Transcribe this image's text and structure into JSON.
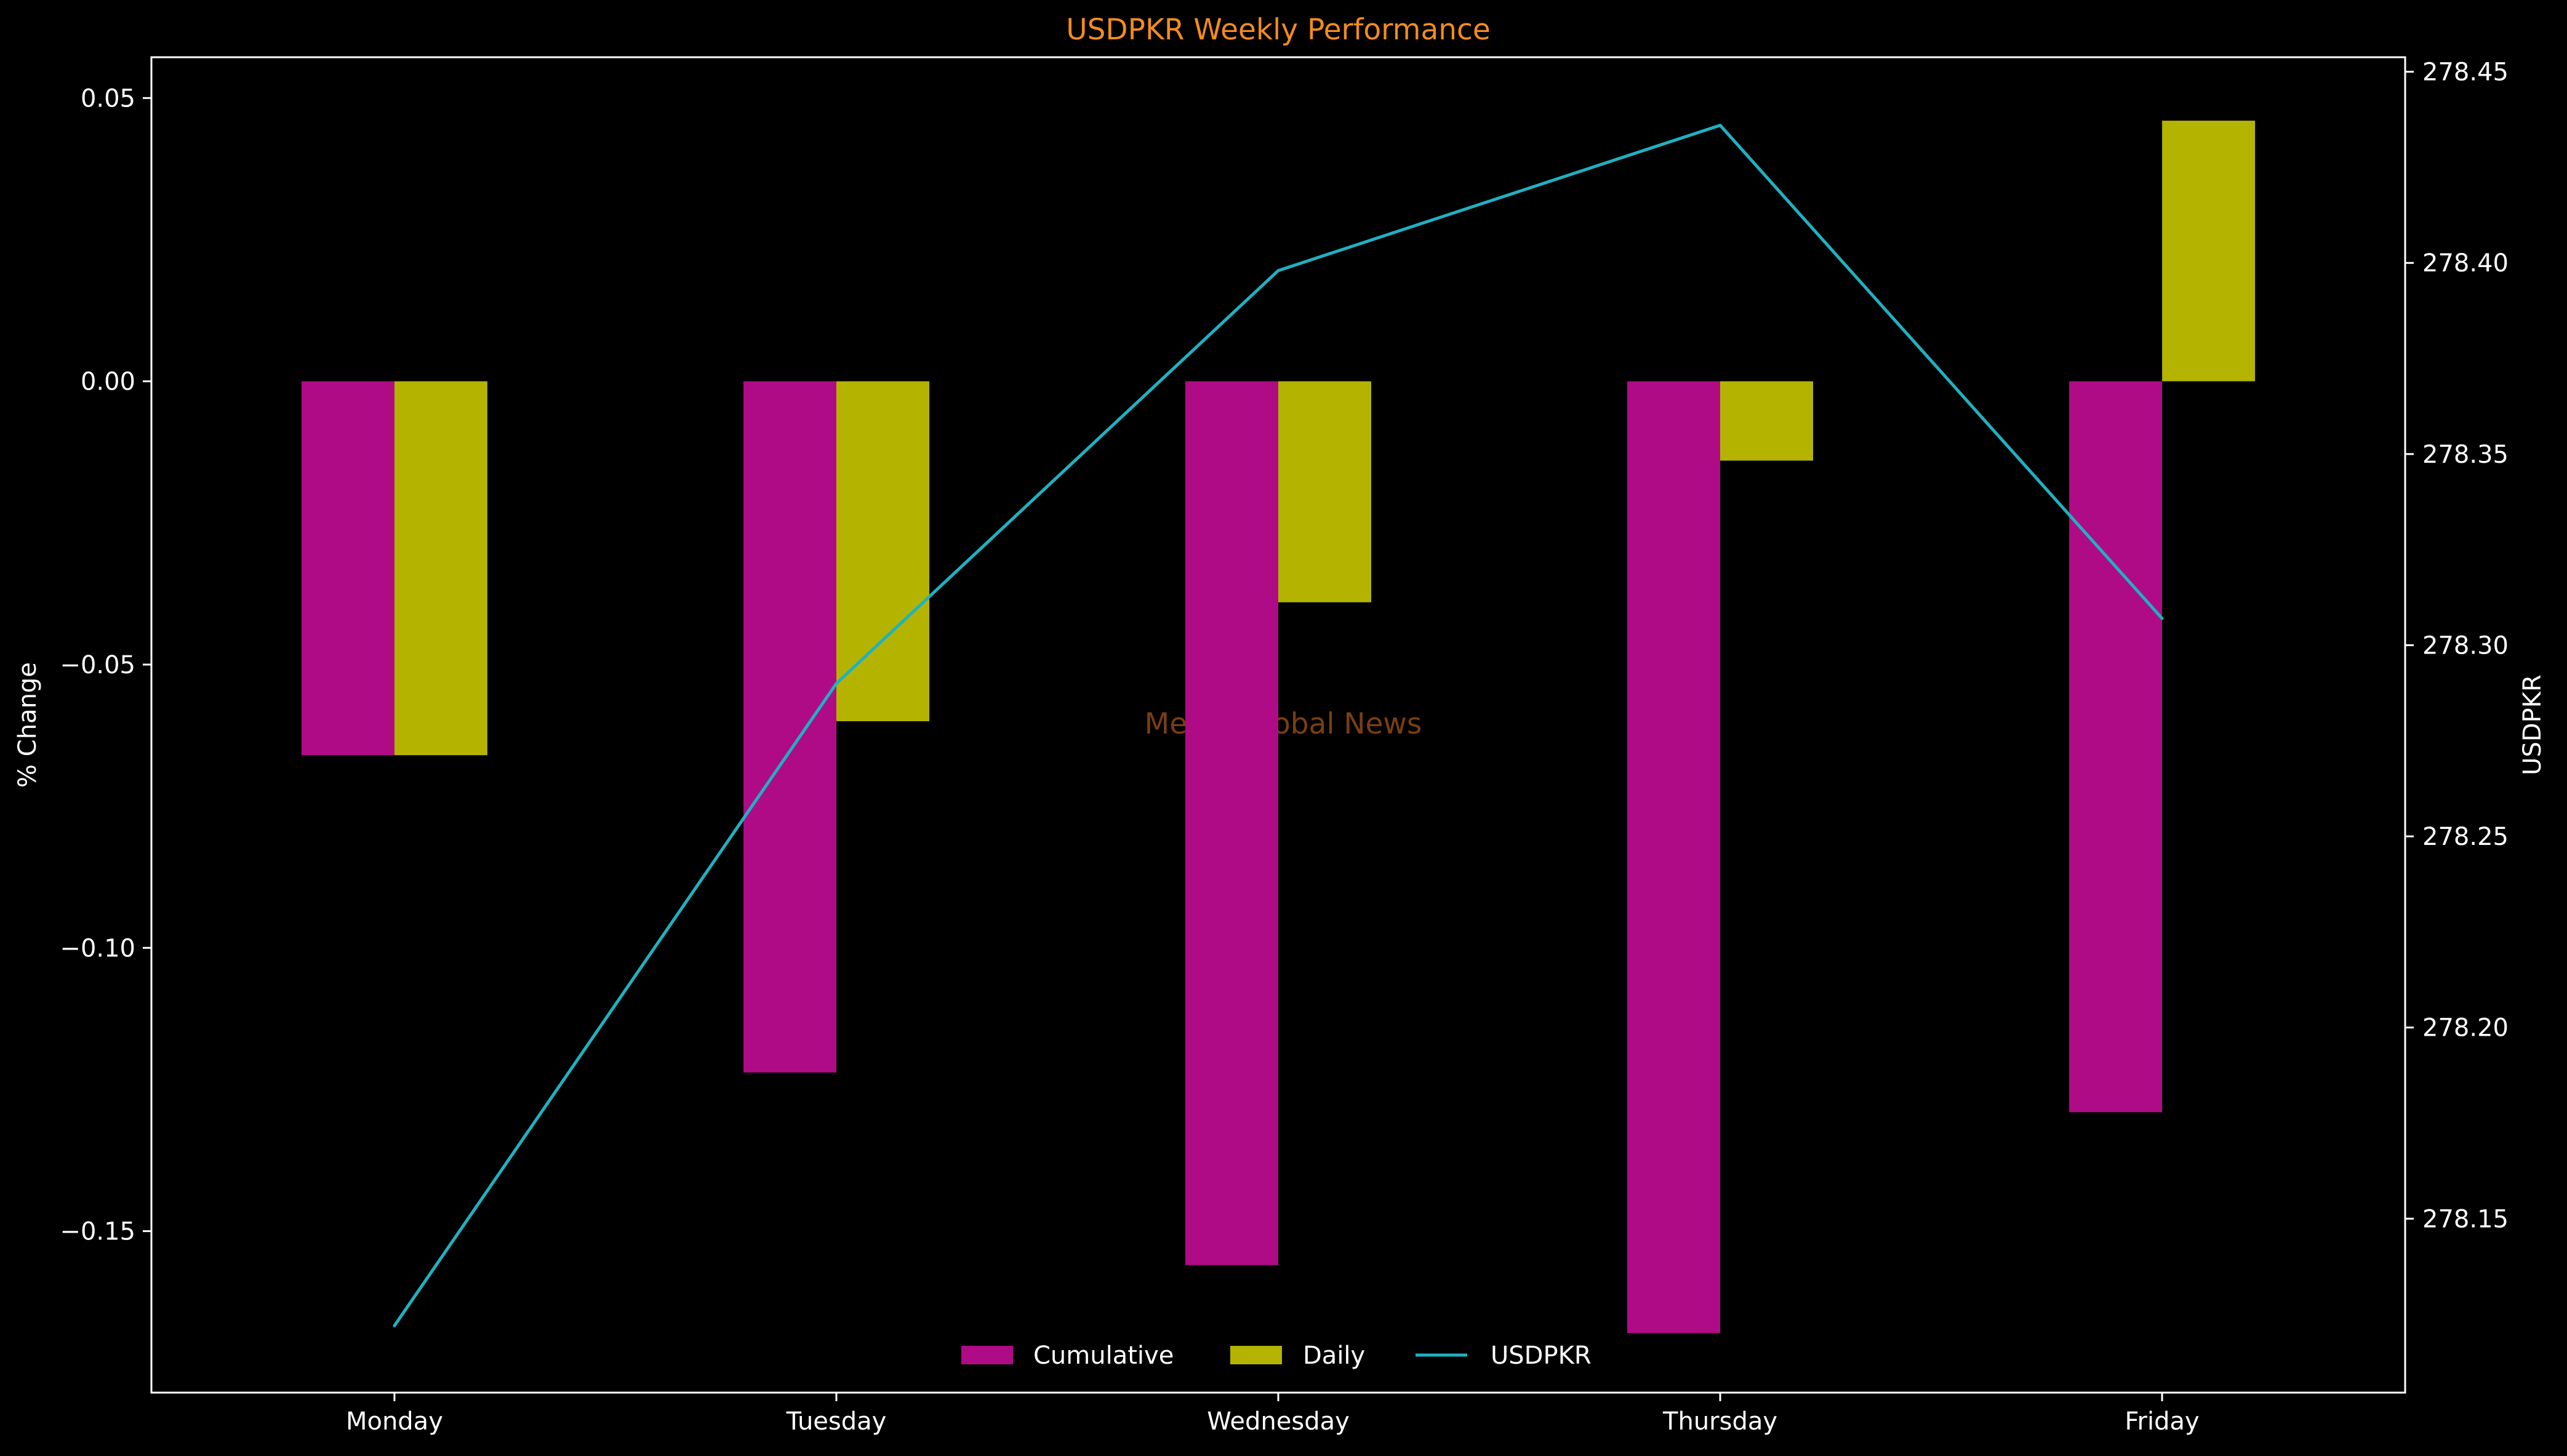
{
  "chart_data": {
    "type": "bar",
    "title": "USDPKR Weekly Performance",
    "ylabel": "% Change",
    "y2label": "USDPKR",
    "categories": [
      "Monday",
      "Tuesday",
      "Wednesday",
      "Thursday",
      "Friday"
    ],
    "series": [
      {
        "name": "Cumulative",
        "kind": "bar",
        "axis": "left",
        "color": "#b00b86",
        "values": [
          -0.066,
          -0.122,
          -0.156,
          -0.168,
          -0.129
        ]
      },
      {
        "name": "Daily",
        "kind": "bar",
        "axis": "left",
        "color": "#b4b400",
        "values": [
          -0.066,
          -0.06,
          -0.039,
          -0.014,
          0.046
        ]
      },
      {
        "name": "USDPKR",
        "kind": "line",
        "axis": "right",
        "color": "#1fb1c1",
        "values": [
          278.122,
          278.29,
          278.398,
          278.436,
          278.307
        ]
      }
    ],
    "ylim": [
      -0.1785,
      0.0572
    ],
    "y2lim": [
      278.1045,
      278.4538
    ],
    "yticks": [
      -0.15,
      -0.1,
      -0.05,
      0.0,
      0.05
    ],
    "ytick_labels": [
      "−0.15",
      "−0.10",
      "−0.05",
      "0.00",
      "0.05"
    ],
    "y2ticks": [
      278.15,
      278.2,
      278.25,
      278.3,
      278.35,
      278.4,
      278.45
    ],
    "y2tick_labels": [
      "278.15",
      "278.20",
      "278.25",
      "278.30",
      "278.35",
      "278.40",
      "278.45"
    ],
    "watermark": "Mettis Global News",
    "legend_position": "bottom-center",
    "grid": false,
    "colors": {
      "background": "#000000",
      "axes": "#ffffff",
      "title": "#f28c1e",
      "watermark": "#7a3e12"
    }
  }
}
